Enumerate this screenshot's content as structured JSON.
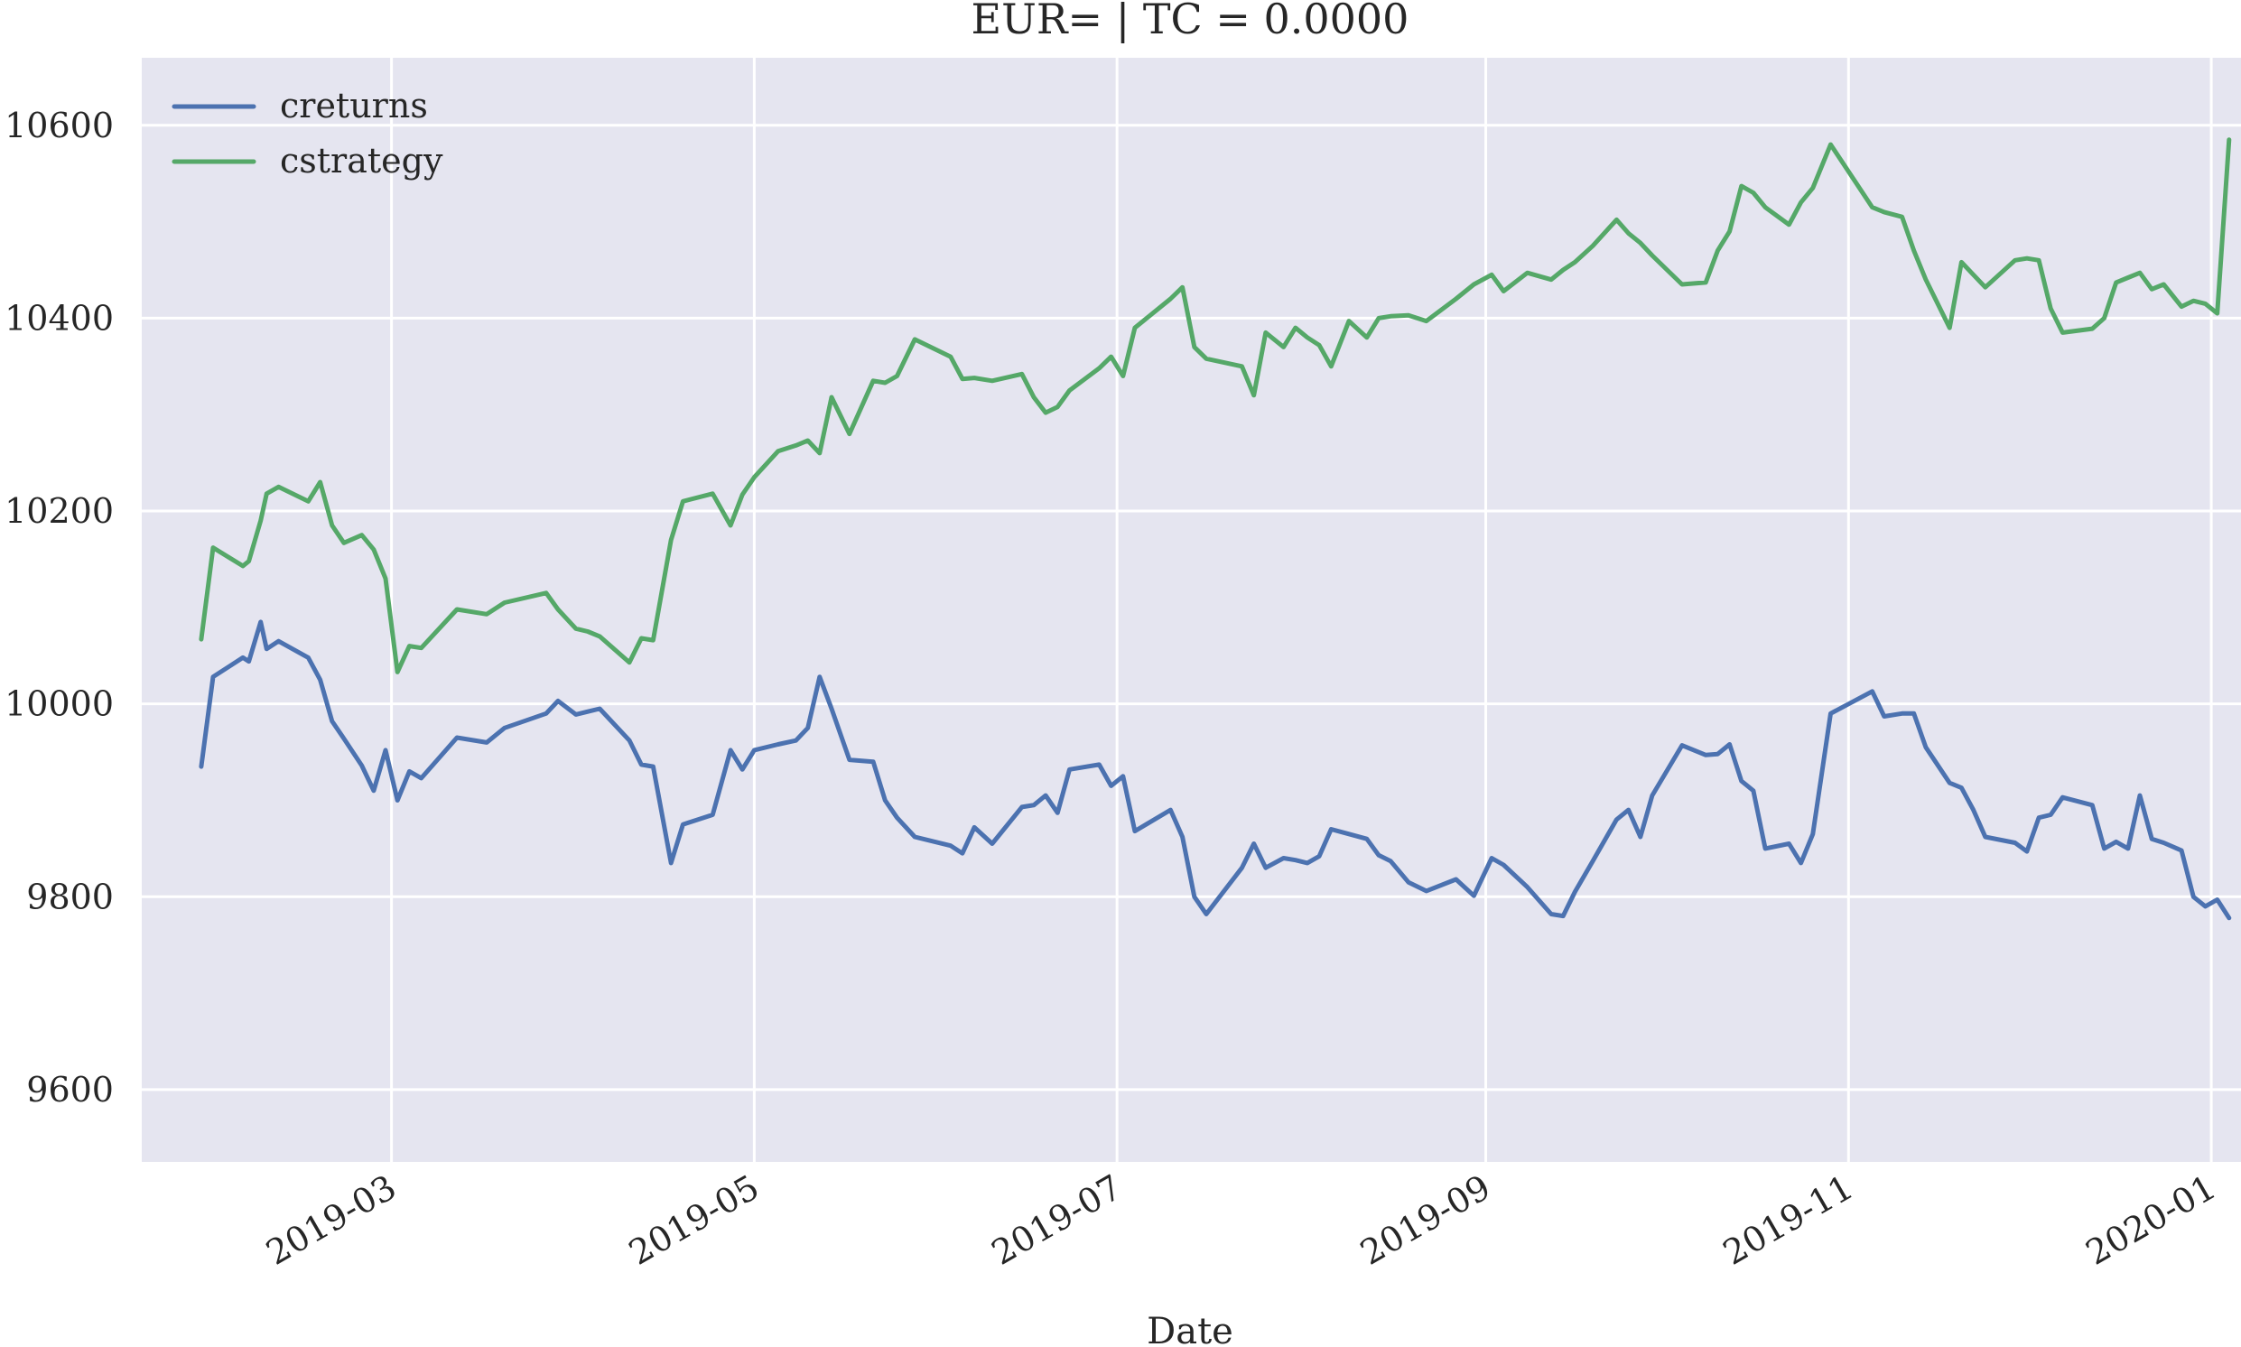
{
  "chart_data": {
    "type": "line",
    "title": "EUR= | TC = 0.0000",
    "xlabel": "Date",
    "ylabel": "",
    "x_type": "date",
    "xlim": [
      "2019-01-18",
      "2020-01-06"
    ],
    "ylim": [
      9525,
      10670
    ],
    "grid": true,
    "legend_position": "top-left",
    "background_color": "#e5e5f0",
    "x_ticks": [
      "2019-03",
      "2019-05",
      "2019-07",
      "2019-09",
      "2019-11",
      "2020-01"
    ],
    "x_tick_dates": [
      "2019-03-01",
      "2019-05-01",
      "2019-07-01",
      "2019-09-01",
      "2019-11-01",
      "2020-01-01"
    ],
    "y_ticks": [
      9600,
      9800,
      10000,
      10200,
      10400,
      10600
    ],
    "series": [
      {
        "name": "creturns",
        "color": "#4c72b0",
        "points": [
          [
            "2019-01-28",
            9935
          ],
          [
            "2019-01-30",
            10028
          ],
          [
            "2019-02-04",
            10048
          ],
          [
            "2019-02-05",
            10044
          ],
          [
            "2019-02-07",
            10085
          ],
          [
            "2019-02-08",
            10057
          ],
          [
            "2019-02-10",
            10065
          ],
          [
            "2019-02-15",
            10048
          ],
          [
            "2019-02-17",
            10025
          ],
          [
            "2019-02-19",
            9982
          ],
          [
            "2019-02-21",
            9964
          ],
          [
            "2019-02-24",
            9936
          ],
          [
            "2019-02-26",
            9910
          ],
          [
            "2019-02-28",
            9952
          ],
          [
            "2019-03-02",
            9900
          ],
          [
            "2019-03-04",
            9930
          ],
          [
            "2019-03-06",
            9923
          ],
          [
            "2019-03-12",
            9965
          ],
          [
            "2019-03-17",
            9960
          ],
          [
            "2019-03-20",
            9975
          ],
          [
            "2019-03-27",
            9990
          ],
          [
            "2019-03-29",
            10003
          ],
          [
            "2019-04-01",
            9989
          ],
          [
            "2019-04-03",
            9992
          ],
          [
            "2019-04-05",
            9995
          ],
          [
            "2019-04-10",
            9962
          ],
          [
            "2019-04-12",
            9937
          ],
          [
            "2019-04-14",
            9935
          ],
          [
            "2019-04-17",
            9835
          ],
          [
            "2019-04-19",
            9875
          ],
          [
            "2019-04-24",
            9885
          ],
          [
            "2019-04-27",
            9952
          ],
          [
            "2019-04-29",
            9932
          ],
          [
            "2019-05-01",
            9952
          ],
          [
            "2019-05-05",
            9958
          ],
          [
            "2019-05-08",
            9962
          ],
          [
            "2019-05-10",
            9975
          ],
          [
            "2019-05-12",
            10028
          ],
          [
            "2019-05-14",
            9995
          ],
          [
            "2019-05-17",
            9942
          ],
          [
            "2019-05-21",
            9940
          ],
          [
            "2019-05-23",
            9900
          ],
          [
            "2019-05-25",
            9882
          ],
          [
            "2019-05-28",
            9862
          ],
          [
            "2019-06-03",
            9853
          ],
          [
            "2019-06-05",
            9845
          ],
          [
            "2019-06-07",
            9872
          ],
          [
            "2019-06-10",
            9855
          ],
          [
            "2019-06-15",
            9893
          ],
          [
            "2019-06-17",
            9895
          ],
          [
            "2019-06-19",
            9905
          ],
          [
            "2019-06-21",
            9887
          ],
          [
            "2019-06-23",
            9932
          ],
          [
            "2019-06-28",
            9937
          ],
          [
            "2019-06-30",
            9915
          ],
          [
            "2019-07-02",
            9925
          ],
          [
            "2019-07-04",
            9868
          ],
          [
            "2019-07-10",
            9890
          ],
          [
            "2019-07-12",
            9862
          ],
          [
            "2019-07-14",
            9800
          ],
          [
            "2019-07-16",
            9782
          ],
          [
            "2019-07-22",
            9830
          ],
          [
            "2019-07-24",
            9855
          ],
          [
            "2019-07-26",
            9830
          ],
          [
            "2019-07-29",
            9840
          ],
          [
            "2019-07-31",
            9838
          ],
          [
            "2019-08-02",
            9835
          ],
          [
            "2019-08-04",
            9842
          ],
          [
            "2019-08-06",
            9870
          ],
          [
            "2019-08-09",
            9865
          ],
          [
            "2019-08-12",
            9860
          ],
          [
            "2019-08-14",
            9843
          ],
          [
            "2019-08-16",
            9837
          ],
          [
            "2019-08-19",
            9815
          ],
          [
            "2019-08-22",
            9806
          ],
          [
            "2019-08-27",
            9818
          ],
          [
            "2019-08-30",
            9801
          ],
          [
            "2019-09-02",
            9840
          ],
          [
            "2019-09-04",
            9833
          ],
          [
            "2019-09-08",
            9810
          ],
          [
            "2019-09-12",
            9782
          ],
          [
            "2019-09-14",
            9780
          ],
          [
            "2019-09-16",
            9805
          ],
          [
            "2019-09-19",
            9837
          ],
          [
            "2019-09-23",
            9880
          ],
          [
            "2019-09-25",
            9890
          ],
          [
            "2019-09-27",
            9862
          ],
          [
            "2019-09-29",
            9905
          ],
          [
            "2019-10-04",
            9957
          ],
          [
            "2019-10-08",
            9947
          ],
          [
            "2019-10-10",
            9948
          ],
          [
            "2019-10-12",
            9958
          ],
          [
            "2019-10-14",
            9920
          ],
          [
            "2019-10-16",
            9910
          ],
          [
            "2019-10-18",
            9850
          ],
          [
            "2019-10-22",
            9855
          ],
          [
            "2019-10-24",
            9835
          ],
          [
            "2019-10-26",
            9865
          ],
          [
            "2019-10-29",
            9990
          ],
          [
            "2019-11-05",
            10013
          ],
          [
            "2019-11-07",
            9987
          ],
          [
            "2019-11-10",
            9990
          ],
          [
            "2019-11-12",
            9990
          ],
          [
            "2019-11-14",
            9955
          ],
          [
            "2019-11-18",
            9918
          ],
          [
            "2019-11-20",
            9913
          ],
          [
            "2019-11-22",
            9890
          ],
          [
            "2019-11-24",
            9862
          ],
          [
            "2019-11-29",
            9856
          ],
          [
            "2019-12-01",
            9847
          ],
          [
            "2019-12-03",
            9882
          ],
          [
            "2019-12-05",
            9885
          ],
          [
            "2019-12-07",
            9903
          ],
          [
            "2019-12-12",
            9895
          ],
          [
            "2019-12-14",
            9850
          ],
          [
            "2019-12-16",
            9857
          ],
          [
            "2019-12-18",
            9850
          ],
          [
            "2019-12-20",
            9905
          ],
          [
            "2019-12-22",
            9860
          ],
          [
            "2019-12-24",
            9856
          ],
          [
            "2019-12-27",
            9848
          ],
          [
            "2019-12-29",
            9800
          ],
          [
            "2019-12-31",
            9790
          ],
          [
            "2020-01-02",
            9797
          ],
          [
            "2020-01-04",
            9778
          ]
        ]
      },
      {
        "name": "cstrategy",
        "color": "#55a868",
        "points": [
          [
            "2019-01-28",
            10067
          ],
          [
            "2019-01-30",
            10162
          ],
          [
            "2019-02-04",
            10143
          ],
          [
            "2019-02-05",
            10148
          ],
          [
            "2019-02-07",
            10190
          ],
          [
            "2019-02-08",
            10218
          ],
          [
            "2019-02-10",
            10225
          ],
          [
            "2019-02-15",
            10210
          ],
          [
            "2019-02-17",
            10230
          ],
          [
            "2019-02-19",
            10185
          ],
          [
            "2019-02-21",
            10167
          ],
          [
            "2019-02-24",
            10175
          ],
          [
            "2019-02-26",
            10160
          ],
          [
            "2019-02-28",
            10130
          ],
          [
            "2019-03-02",
            10033
          ],
          [
            "2019-03-04",
            10060
          ],
          [
            "2019-03-06",
            10058
          ],
          [
            "2019-03-12",
            10098
          ],
          [
            "2019-03-17",
            10093
          ],
          [
            "2019-03-20",
            10105
          ],
          [
            "2019-03-27",
            10115
          ],
          [
            "2019-03-29",
            10098
          ],
          [
            "2019-04-01",
            10078
          ],
          [
            "2019-04-03",
            10075
          ],
          [
            "2019-04-05",
            10070
          ],
          [
            "2019-04-10",
            10043
          ],
          [
            "2019-04-12",
            10068
          ],
          [
            "2019-04-14",
            10066
          ],
          [
            "2019-04-17",
            10170
          ],
          [
            "2019-04-19",
            10210
          ],
          [
            "2019-04-24",
            10218
          ],
          [
            "2019-04-27",
            10185
          ],
          [
            "2019-04-29",
            10217
          ],
          [
            "2019-05-01",
            10235
          ],
          [
            "2019-05-05",
            10262
          ],
          [
            "2019-05-08",
            10268
          ],
          [
            "2019-05-10",
            10273
          ],
          [
            "2019-05-12",
            10260
          ],
          [
            "2019-05-14",
            10318
          ],
          [
            "2019-05-17",
            10280
          ],
          [
            "2019-05-21",
            10335
          ],
          [
            "2019-05-23",
            10333
          ],
          [
            "2019-05-25",
            10340
          ],
          [
            "2019-05-28",
            10378
          ],
          [
            "2019-06-03",
            10360
          ],
          [
            "2019-06-05",
            10337
          ],
          [
            "2019-06-07",
            10338
          ],
          [
            "2019-06-10",
            10335
          ],
          [
            "2019-06-15",
            10342
          ],
          [
            "2019-06-17",
            10318
          ],
          [
            "2019-06-19",
            10302
          ],
          [
            "2019-06-21",
            10308
          ],
          [
            "2019-06-23",
            10325
          ],
          [
            "2019-06-28",
            10348
          ],
          [
            "2019-06-30",
            10360
          ],
          [
            "2019-07-02",
            10340
          ],
          [
            "2019-07-04",
            10390
          ],
          [
            "2019-07-10",
            10420
          ],
          [
            "2019-07-12",
            10432
          ],
          [
            "2019-07-14",
            10370
          ],
          [
            "2019-07-16",
            10358
          ],
          [
            "2019-07-22",
            10350
          ],
          [
            "2019-07-24",
            10320
          ],
          [
            "2019-07-26",
            10385
          ],
          [
            "2019-07-29",
            10370
          ],
          [
            "2019-07-31",
            10390
          ],
          [
            "2019-08-02",
            10380
          ],
          [
            "2019-08-04",
            10372
          ],
          [
            "2019-08-06",
            10350
          ],
          [
            "2019-08-09",
            10397
          ],
          [
            "2019-08-12",
            10380
          ],
          [
            "2019-08-14",
            10400
          ],
          [
            "2019-08-16",
            10402
          ],
          [
            "2019-08-19",
            10403
          ],
          [
            "2019-08-22",
            10397
          ],
          [
            "2019-08-27",
            10420
          ],
          [
            "2019-08-30",
            10435
          ],
          [
            "2019-09-02",
            10445
          ],
          [
            "2019-09-04",
            10428
          ],
          [
            "2019-09-08",
            10447
          ],
          [
            "2019-09-12",
            10440
          ],
          [
            "2019-09-14",
            10450
          ],
          [
            "2019-09-16",
            10458
          ],
          [
            "2019-09-19",
            10475
          ],
          [
            "2019-09-23",
            10502
          ],
          [
            "2019-09-25",
            10488
          ],
          [
            "2019-09-27",
            10478
          ],
          [
            "2019-09-29",
            10465
          ],
          [
            "2019-10-04",
            10435
          ],
          [
            "2019-10-08",
            10437
          ],
          [
            "2019-10-10",
            10470
          ],
          [
            "2019-10-12",
            10490
          ],
          [
            "2019-10-14",
            10537
          ],
          [
            "2019-10-16",
            10530
          ],
          [
            "2019-10-18",
            10515
          ],
          [
            "2019-10-22",
            10497
          ],
          [
            "2019-10-24",
            10520
          ],
          [
            "2019-10-26",
            10535
          ],
          [
            "2019-10-29",
            10580
          ],
          [
            "2019-11-05",
            10515
          ],
          [
            "2019-11-07",
            10510
          ],
          [
            "2019-11-10",
            10505
          ],
          [
            "2019-11-12",
            10470
          ],
          [
            "2019-11-14",
            10440
          ],
          [
            "2019-11-18",
            10390
          ],
          [
            "2019-11-20",
            10458
          ],
          [
            "2019-11-22",
            10445
          ],
          [
            "2019-11-24",
            10432
          ],
          [
            "2019-11-29",
            10460
          ],
          [
            "2019-12-01",
            10462
          ],
          [
            "2019-12-03",
            10460
          ],
          [
            "2019-12-05",
            10410
          ],
          [
            "2019-12-07",
            10385
          ],
          [
            "2019-12-12",
            10389
          ],
          [
            "2019-12-14",
            10400
          ],
          [
            "2019-12-16",
            10437
          ],
          [
            "2019-12-18",
            10442
          ],
          [
            "2019-12-20",
            10447
          ],
          [
            "2019-12-22",
            10430
          ],
          [
            "2019-12-24",
            10435
          ],
          [
            "2019-12-27",
            10412
          ],
          [
            "2019-12-29",
            10418
          ],
          [
            "2019-12-31",
            10415
          ],
          [
            "2020-01-02",
            10405
          ],
          [
            "2020-01-04",
            10585
          ]
        ]
      }
    ]
  }
}
